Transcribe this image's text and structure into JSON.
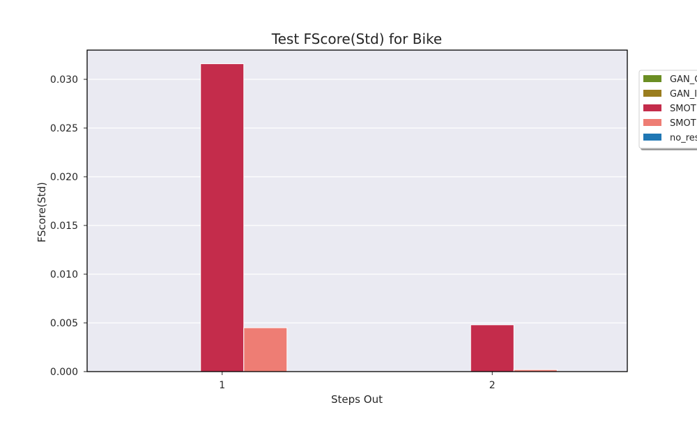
{
  "chart_data": {
    "type": "bar",
    "title": "Test FScore(Std) for Bike",
    "xlabel": "Steps Out",
    "ylabel": "FScore(Std)",
    "categories": [
      "1",
      "2"
    ],
    "ylim": [
      0,
      0.033
    ],
    "yticks": [
      "0.000",
      "0.005",
      "0.010",
      "0.015",
      "0.020",
      "0.025",
      "0.030"
    ],
    "grid": true,
    "legend_placement": "right, outside plot (clipped)",
    "series": [
      {
        "name": "GAN_C",
        "color": "#6b8e23",
        "values": [
          0,
          0
        ]
      },
      {
        "name": "GAN_I",
        "color": "#9a7d1e",
        "values": [
          0,
          0
        ]
      },
      {
        "name": "SMOT",
        "color": "#c42c4b",
        "values": [
          0.0316,
          0.0048
        ]
      },
      {
        "name": "SMOT",
        "color": "#ee7d74",
        "values": [
          0.0045,
          0.0002
        ]
      },
      {
        "name": "no_res",
        "color": "#1f77b4",
        "values": [
          0,
          0
        ]
      }
    ],
    "colors": {
      "plot_background": "#eaeaf2",
      "grid": "#ffffff"
    }
  }
}
